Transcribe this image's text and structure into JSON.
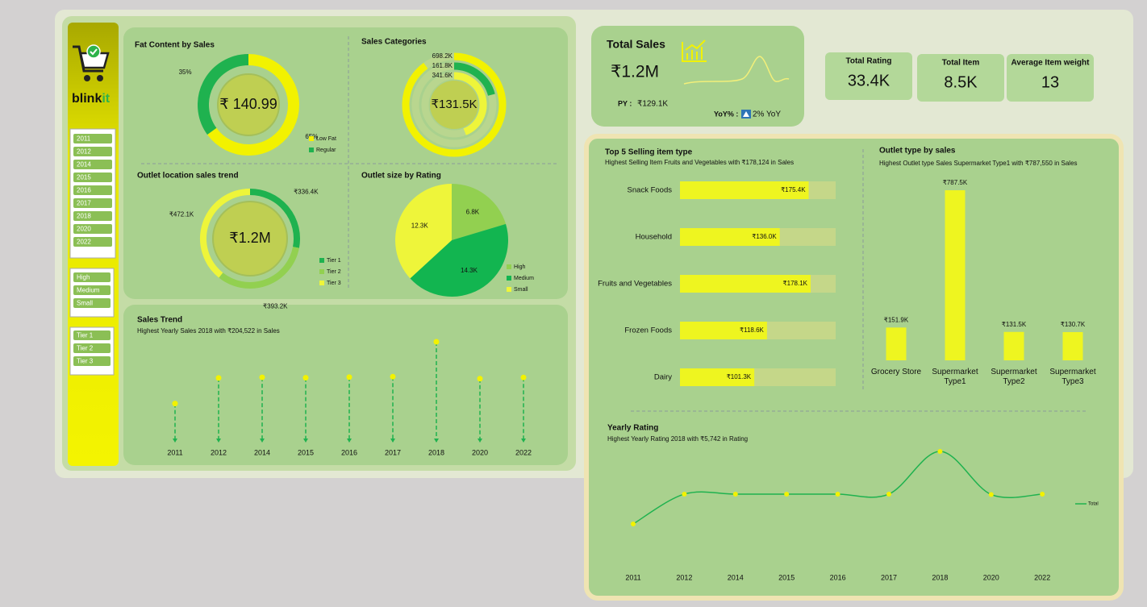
{
  "brand": {
    "main": "blink",
    "accent": "it"
  },
  "slicers": {
    "years": [
      "2011",
      "2012",
      "2014",
      "2015",
      "2016",
      "2017",
      "2018",
      "2020",
      "2022"
    ],
    "outlet_size": [
      "High",
      "Medium",
      "Small"
    ],
    "outlet_location": [
      "Tier 1",
      "Tier 2",
      "Tier 3"
    ]
  },
  "kpis": {
    "total_sales": {
      "title": "Total Sales",
      "value": "₹1.2M",
      "py_label": "PY :",
      "py_value": "₹129.1K",
      "yoy_label": "YoY% :",
      "yoy_value": "2% YoY"
    },
    "cards": [
      {
        "title": "Total Rating",
        "value": "33.4K"
      },
      {
        "title": "Total Item",
        "value": "8.5K"
      },
      {
        "title": "Average Item weight",
        "value": "13"
      }
    ]
  },
  "chart_data": [
    {
      "type": "donut",
      "title": "Fat Content by Sales",
      "center_label": "₹ 140.99",
      "categories": [
        "Low Fat",
        "Regular"
      ],
      "values": [
        65,
        35
      ],
      "value_labels": [
        "65%",
        "35%"
      ],
      "colors": [
        "#f2f200",
        "#1fb24f"
      ]
    },
    {
      "type": "rings",
      "title": "Sales Categories",
      "center_label": "₹131.5K",
      "values": [
        698200,
        161800,
        341600
      ],
      "value_labels": [
        "698.2K",
        "161.8K",
        "341.6K"
      ],
      "colors": [
        "#f2f200",
        "#1fb24f",
        "#eef53a"
      ]
    },
    {
      "type": "donut",
      "title": "Outlet location sales trend",
      "center_label": "₹1.2M",
      "categories": [
        "Tier 1",
        "Tier 2",
        "Tier 3"
      ],
      "values": [
        336400,
        393200,
        472100
      ],
      "value_labels": [
        "₹336.4K",
        "₹393.2K",
        "₹472.1K"
      ],
      "colors": [
        "#1fb24f",
        "#92d050",
        "#eef53a"
      ]
    },
    {
      "type": "pie",
      "title": "Outlet size by Rating",
      "categories": [
        "High",
        "Medium",
        "Small"
      ],
      "values": [
        6800,
        14300,
        12300
      ],
      "value_labels": [
        "6.8K",
        "14.3K",
        "12.3K"
      ],
      "colors": [
        "#92d050",
        "#12b550",
        "#eef53a"
      ]
    },
    {
      "type": "lollipop",
      "title": "Sales Trend",
      "subtitle": "Highest Yearly Sales 2018 with ₹204,522 in Sales",
      "categories": [
        "2011",
        "2012",
        "2014",
        "2015",
        "2016",
        "2017",
        "2018",
        "2020",
        "2022"
      ],
      "values": [
        78131,
        130477,
        131810,
        130942,
        132113,
        133104,
        204522,
        129103,
        131477
      ],
      "color": "#1fb24f",
      "dot_color": "#f2f200"
    },
    {
      "type": "hbar",
      "title": "Top 5 Selling item type",
      "subtitle": "Highest Selling Item Fruits and Vegetables with ₹178,124 in Sales",
      "categories": [
        "Snack Foods",
        "Household",
        "Fruits and Vegetables",
        "Frozen Foods",
        "Dairy"
      ],
      "values": [
        175400,
        136000,
        178100,
        118600,
        101300
      ],
      "value_labels": [
        "₹175.4K",
        "₹136.0K",
        "₹178.1K",
        "₹118.6K",
        "₹101.3K"
      ],
      "color": "#eef520",
      "track_color": "#c5d789"
    },
    {
      "type": "bar",
      "title": "Outlet type by sales",
      "subtitle": "Highest Outlet type Sales Supermarket Type1 with ₹787,550 in Sales",
      "categories": [
        "Grocery Store",
        "Supermarket Type1",
        "Supermarket Type2",
        "Supermarket Type3"
      ],
      "values": [
        151900,
        787500,
        131500,
        130700
      ],
      "value_labels": [
        "₹151.9K",
        "₹787.5K",
        "₹131.5K",
        "₹130.7K"
      ],
      "color": "#eef520"
    },
    {
      "type": "line",
      "title": "Yearly Rating",
      "subtitle": "Highest Yearly Rating 2018 with ₹5,742 in Rating",
      "categories": [
        "2011",
        "2012",
        "2014",
        "2015",
        "2016",
        "2017",
        "2018",
        "2020",
        "2022"
      ],
      "series": [
        {
          "name": "Total",
          "color": "#1fb24f",
          "values": [
            2050,
            3570,
            3570,
            3570,
            3570,
            3570,
            5742,
            3550,
            3570
          ]
        }
      ],
      "dot_color": "#f2f200"
    }
  ]
}
